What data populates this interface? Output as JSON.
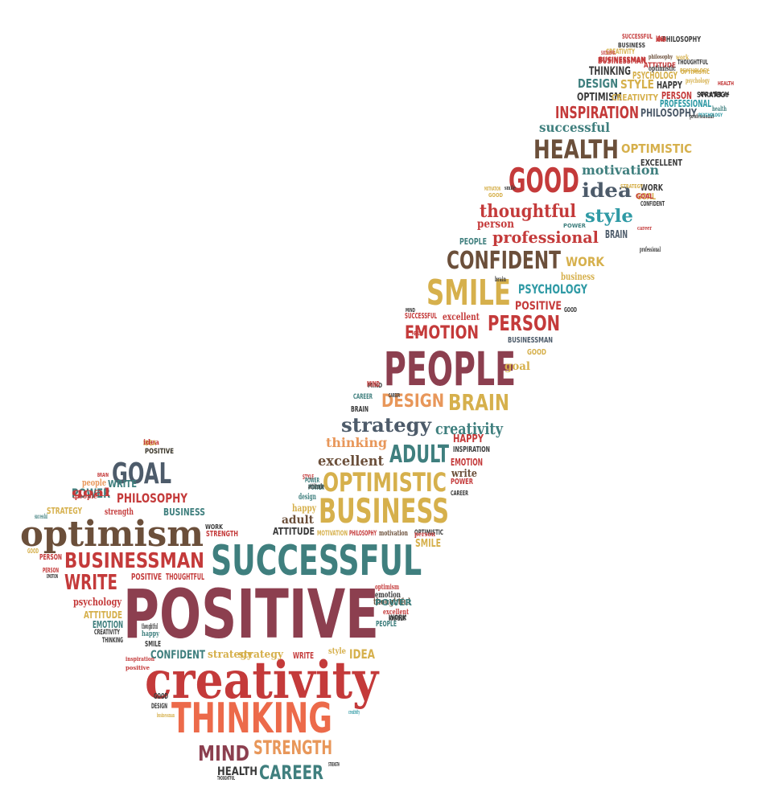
{
  "palette": {
    "red": "#b0343a",
    "maroon": "#8c3f4f",
    "brown": "#6b4f3a",
    "olive": "#8a7a52",
    "gold": "#d6b04c",
    "orange": "#e8975a",
    "coral": "#ec6a4a",
    "teal": "#3f7f7e",
    "cyan": "#2f9aa5",
    "slate": "#4d5b6a",
    "dark": "#3a3a3a",
    "crimson": "#c43a3a"
  },
  "words": [
    {
      "text": "POSITIVE",
      "color": "maroon",
      "cls": "cond"
    },
    {
      "text": "creativity",
      "color": "crimson",
      "cls": "serif"
    },
    {
      "text": "THINKING",
      "color": "coral",
      "cls": "cond"
    },
    {
      "text": "SUCCESSFUL",
      "color": "teal",
      "cls": "cond"
    },
    {
      "text": "PEOPLE",
      "color": "maroon",
      "cls": "cond"
    },
    {
      "text": "BUSINESS",
      "color": "gold",
      "cls": "cond"
    },
    {
      "text": "optimism",
      "color": "brown",
      "cls": "serif"
    },
    {
      "text": "BUSINESSMAN",
      "color": "crimson",
      "cls": "cond"
    },
    {
      "text": "GOOD",
      "color": "crimson",
      "cls": "cond"
    },
    {
      "text": "HEALTH",
      "color": "brown",
      "cls": "cond"
    },
    {
      "text": "SMILE",
      "color": "gold",
      "cls": "cond"
    },
    {
      "text": "CONFIDENT",
      "color": "brown",
      "cls": "cond"
    },
    {
      "text": "OPTIMISTIC",
      "color": "gold",
      "cls": "cond"
    },
    {
      "text": "GOAL",
      "color": "slate",
      "cls": "cond"
    },
    {
      "text": "WRITE",
      "color": "crimson",
      "cls": "cond"
    },
    {
      "text": "MIND",
      "color": "maroon",
      "cls": "cond"
    },
    {
      "text": "STRENGTH",
      "color": "orange",
      "cls": "cond"
    },
    {
      "text": "CAREER",
      "color": "teal",
      "cls": "cond"
    },
    {
      "text": "HEALTH",
      "color": "dark",
      "cls": "cond"
    },
    {
      "text": "ADULT",
      "color": "teal",
      "cls": "cond"
    },
    {
      "text": "excellent",
      "color": "brown",
      "cls": "serif"
    },
    {
      "text": "strategy",
      "color": "slate",
      "cls": "serif"
    },
    {
      "text": "creativity",
      "color": "teal",
      "cls": "serif"
    },
    {
      "text": "DESIGN",
      "color": "orange",
      "cls": "cond"
    },
    {
      "text": "BRAIN",
      "color": "gold",
      "cls": "cond"
    },
    {
      "text": "EMOTION",
      "color": "crimson",
      "cls": "cond"
    },
    {
      "text": "PERSON",
      "color": "crimson",
      "cls": "cond"
    },
    {
      "text": "PSYCHOLOGY",
      "color": "cyan",
      "cls": "cond"
    },
    {
      "text": "POSITIVE",
      "color": "crimson",
      "cls": "cond"
    },
    {
      "text": "professional",
      "color": "crimson",
      "cls": "serif"
    },
    {
      "text": "thoughtful",
      "color": "crimson",
      "cls": "serif"
    },
    {
      "text": "style",
      "color": "cyan",
      "cls": "serif"
    },
    {
      "text": "idea",
      "color": "slate",
      "cls": "serif"
    },
    {
      "text": "motivation",
      "color": "teal",
      "cls": "serif"
    },
    {
      "text": "WORK",
      "color": "gold",
      "cls": "cond"
    },
    {
      "text": "person",
      "color": "crimson",
      "cls": "serif"
    },
    {
      "text": "PEOPLE",
      "color": "teal",
      "cls": "cond"
    },
    {
      "text": "successful",
      "color": "teal",
      "cls": "serif"
    },
    {
      "text": "INSPIRATION",
      "color": "crimson",
      "cls": "cond"
    },
    {
      "text": "OPTIMISM",
      "color": "dark",
      "cls": "cond"
    },
    {
      "text": "DESIGN",
      "color": "teal",
      "cls": "cond"
    },
    {
      "text": "STYLE",
      "color": "gold",
      "cls": "cond"
    },
    {
      "text": "HAPPY",
      "color": "dark",
      "cls": "cond"
    },
    {
      "text": "PHILOSOPHY",
      "color": "slate",
      "cls": "cond"
    },
    {
      "text": "PROFESSIONAL",
      "color": "cyan",
      "cls": "cond"
    },
    {
      "text": "THINKING",
      "color": "dark",
      "cls": "cond"
    },
    {
      "text": "BUSINESSMAN",
      "color": "crimson",
      "cls": "cond"
    },
    {
      "text": "CREATIVITY",
      "color": "gold",
      "cls": "cond"
    },
    {
      "text": "PSYCHOLOGY",
      "color": "gold",
      "cls": "cond"
    },
    {
      "text": "PERSON",
      "color": "crimson",
      "cls": "cond"
    },
    {
      "text": "OPTIMISTIC",
      "color": "gold",
      "cls": "cond"
    },
    {
      "text": "POWER",
      "color": "teal",
      "cls": "cond"
    },
    {
      "text": "PHILOSOPHY",
      "color": "crimson",
      "cls": "cond"
    },
    {
      "text": "BUSINESS",
      "color": "teal",
      "cls": "cond"
    },
    {
      "text": "psychology",
      "color": "crimson",
      "cls": "serif"
    },
    {
      "text": "ATTITUDE",
      "color": "gold",
      "cls": "cond"
    },
    {
      "text": "EMOTION",
      "color": "teal",
      "cls": "cond"
    },
    {
      "text": "CONFIDENT",
      "color": "teal",
      "cls": "cond"
    },
    {
      "text": "strategy",
      "color": "gold",
      "cls": "serif"
    },
    {
      "text": "IDEA",
      "color": "gold",
      "cls": "cond"
    },
    {
      "text": "thinking",
      "color": "orange",
      "cls": "serif"
    },
    {
      "text": "HAPPY",
      "color": "crimson",
      "cls": "cond"
    },
    {
      "text": "INSPIRATION",
      "color": "dark",
      "cls": "cond"
    },
    {
      "text": "EMOTION",
      "color": "crimson",
      "cls": "cond"
    },
    {
      "text": "write",
      "color": "brown",
      "cls": "serif"
    },
    {
      "text": "POWER",
      "color": "crimson",
      "cls": "cond"
    },
    {
      "text": "adult",
      "color": "brown",
      "cls": "serif"
    },
    {
      "text": "ATTITUDE",
      "color": "dark",
      "cls": "cond"
    },
    {
      "text": "MOTIVATION",
      "color": "gold",
      "cls": "cond"
    },
    {
      "text": "motivation",
      "color": "brown",
      "cls": "serif"
    },
    {
      "text": "SMILE",
      "color": "gold",
      "cls": "cond"
    },
    {
      "text": "thoughtful",
      "color": "brown",
      "cls": "serif"
    },
    {
      "text": "PEOPLE",
      "color": "teal",
      "cls": "cond"
    },
    {
      "text": "goal",
      "color": "gold",
      "cls": "serif"
    },
    {
      "text": "GOOD",
      "color": "gold",
      "cls": "cond"
    },
    {
      "text": "BUSINESSMAN",
      "color": "slate",
      "cls": "cond"
    },
    {
      "text": "excellent",
      "color": "crimson",
      "cls": "serif"
    },
    {
      "text": "SUCCESSFUL",
      "color": "crimson",
      "cls": "cond"
    },
    {
      "text": "business",
      "color": "gold",
      "cls": "serif"
    },
    {
      "text": "BRAIN",
      "color": "slate",
      "cls": "cond"
    },
    {
      "text": "GOAL",
      "color": "gold",
      "cls": "cond"
    },
    {
      "text": "EXCELLENT",
      "color": "dark",
      "cls": "cond"
    },
    {
      "text": "STRATEGY",
      "color": "dark",
      "cls": "cond"
    },
    {
      "text": "HEALTH",
      "color": "crimson",
      "cls": "cond"
    },
    {
      "text": "PHILOSOPHY",
      "color": "dark",
      "cls": "cond"
    },
    {
      "text": "idea",
      "color": "crimson",
      "cls": "serif"
    },
    {
      "text": "POSITIVE",
      "color": "gold",
      "cls": "cond"
    },
    {
      "text": "people",
      "color": "orange",
      "cls": "serif"
    },
    {
      "text": "strength",
      "color": "crimson",
      "cls": "serif"
    },
    {
      "text": "STRATEGY",
      "color": "gold",
      "cls": "cond"
    },
    {
      "text": "STRENGTH",
      "color": "crimson",
      "cls": "cond"
    },
    {
      "text": "PERSON",
      "color": "crimson",
      "cls": "cond"
    },
    {
      "text": "POSITIVE",
      "color": "crimson",
      "cls": "cond"
    },
    {
      "text": "THOUGHTFUL",
      "color": "crimson",
      "cls": "cond"
    },
    {
      "text": "CREATIVITY",
      "color": "dark",
      "cls": "cond"
    },
    {
      "text": "THINKING",
      "color": "dark",
      "cls": "cond"
    },
    {
      "text": "happy",
      "color": "teal",
      "cls": "serif"
    },
    {
      "text": "SMILE",
      "color": "dark",
      "cls": "cond"
    },
    {
      "text": "GOOD",
      "color": "dark",
      "cls": "cond"
    },
    {
      "text": "DESIGN",
      "color": "dark",
      "cls": "cond"
    },
    {
      "text": "WRITE",
      "color": "crimson",
      "cls": "cond"
    },
    {
      "text": "IDEA",
      "color": "gold",
      "cls": "cond"
    },
    {
      "text": "strategy",
      "color": "gold",
      "cls": "serif"
    },
    {
      "text": "CAREER",
      "color": "teal",
      "cls": "cond"
    },
    {
      "text": "BRAIN",
      "color": "dark",
      "cls": "cond"
    },
    {
      "text": "MIND",
      "color": "dark",
      "cls": "cond"
    },
    {
      "text": "CAREER",
      "color": "dark",
      "cls": "cond"
    },
    {
      "text": "POWER",
      "color": "teal",
      "cls": "cond"
    },
    {
      "text": "THOUGHTFUL",
      "color": "dark",
      "cls": "cond"
    },
    {
      "text": "SUCCESSFUL",
      "color": "crimson",
      "cls": "cond"
    },
    {
      "text": "CREATIVITY",
      "color": "gold",
      "cls": "cond"
    },
    {
      "text": "philosophy",
      "color": "brown",
      "cls": "serif"
    },
    {
      "text": "work",
      "color": "gold",
      "cls": "serif"
    },
    {
      "text": "BUSINESSMAN",
      "color": "crimson",
      "cls": "cond"
    },
    {
      "text": "ATTITUDE",
      "color": "crimson",
      "cls": "cond"
    },
    {
      "text": "PSYCHOLOGY",
      "color": "gold",
      "cls": "cond"
    },
    {
      "text": "health",
      "color": "teal",
      "cls": "serif"
    },
    {
      "text": "professional",
      "color": "dark",
      "cls": "serif"
    },
    {
      "text": "WORK",
      "color": "dark",
      "cls": "cond"
    },
    {
      "text": "GOAL",
      "color": "crimson",
      "cls": "cond"
    },
    {
      "text": "CONFIDENT",
      "color": "dark",
      "cls": "cond"
    },
    {
      "text": "career",
      "color": "crimson",
      "cls": "serif"
    },
    {
      "text": "smile",
      "color": "dark",
      "cls": "serif"
    },
    {
      "text": "GOOD",
      "color": "gold",
      "cls": "cond"
    },
    {
      "text": "brain",
      "color": "dark",
      "cls": "serif"
    },
    {
      "text": "GOOD",
      "color": "dark",
      "cls": "cond"
    },
    {
      "text": "MIND",
      "color": "dark",
      "cls": "cond"
    },
    {
      "text": "CAREER",
      "color": "dark",
      "cls": "cond"
    },
    {
      "text": "STYLE",
      "color": "crimson",
      "cls": "cond"
    },
    {
      "text": "POWER",
      "color": "teal",
      "cls": "cond"
    },
    {
      "text": "IDEA",
      "color": "crimson",
      "cls": "cond"
    },
    {
      "text": "MIND",
      "color": "crimson",
      "cls": "cond"
    },
    {
      "text": "HEALTH",
      "color": "crimson",
      "cls": "cond"
    },
    {
      "text": "optimism",
      "color": "crimson",
      "cls": "serif"
    },
    {
      "text": "emotion",
      "color": "dark",
      "cls": "serif"
    },
    {
      "text": "excellent",
      "color": "crimson",
      "cls": "serif"
    },
    {
      "text": "WORK",
      "color": "dark",
      "cls": "cond"
    },
    {
      "text": "OPTIMISTIC",
      "color": "dark",
      "cls": "cond"
    },
    {
      "text": "PHILOSOPHY",
      "color": "crimson",
      "cls": "cond"
    },
    {
      "text": "idea",
      "color": "crimson",
      "cls": "serif"
    },
    {
      "text": "POSITIVE",
      "color": "dark",
      "cls": "cond"
    },
    {
      "text": "GOOD",
      "color": "gold",
      "cls": "cond"
    },
    {
      "text": "PERSON",
      "color": "crimson",
      "cls": "cond"
    },
    {
      "text": "EMOTION",
      "color": "dark",
      "cls": "cond"
    },
    {
      "text": "BRAIN",
      "color": "crimson",
      "cls": "cond"
    },
    {
      "text": "WRITE",
      "color": "teal",
      "cls": "cond"
    },
    {
      "text": "people",
      "color": "crimson",
      "cls": "serif"
    },
    {
      "text": "successful",
      "color": "teal",
      "cls": "serif"
    },
    {
      "text": "goal",
      "color": "crimson",
      "cls": "serif"
    },
    {
      "text": "POWER",
      "color": "teal",
      "cls": "cond"
    },
    {
      "text": "thoughtful",
      "color": "dark",
      "cls": "serif"
    },
    {
      "text": "positive",
      "color": "crimson",
      "cls": "serif"
    },
    {
      "text": "inspiration",
      "color": "crimson",
      "cls": "serif"
    },
    {
      "text": "businessman",
      "color": "gold",
      "cls": "serif"
    },
    {
      "text": "creativity",
      "color": "cyan",
      "cls": "serif"
    },
    {
      "text": "STRENGTH",
      "color": "dark",
      "cls": "cond"
    },
    {
      "text": "happy",
      "color": "gold",
      "cls": "serif"
    },
    {
      "text": "design",
      "color": "teal",
      "cls": "serif"
    },
    {
      "text": "style",
      "color": "gold",
      "cls": "serif"
    },
    {
      "text": "person",
      "color": "crimson",
      "cls": "serif"
    },
    {
      "text": "CONFIDENT",
      "color": "dark",
      "cls": "cond"
    },
    {
      "text": "WORK",
      "color": "dark",
      "cls": "cond"
    },
    {
      "text": "attitude",
      "color": "dark",
      "cls": "serif"
    },
    {
      "text": "POWER",
      "color": "teal",
      "cls": "cond"
    },
    {
      "text": "THOUGHTFUL",
      "color": "dark",
      "cls": "cond"
    },
    {
      "text": "optimistic",
      "color": "dark",
      "cls": "serif"
    },
    {
      "text": "psychology",
      "color": "gold",
      "cls": "serif"
    },
    {
      "text": "OPTIMISTIC",
      "color": "gold",
      "cls": "cond"
    },
    {
      "text": "PSYCHOLOGY",
      "color": "cyan",
      "cls": "cond"
    },
    {
      "text": "professional",
      "color": "dark",
      "cls": "serif"
    },
    {
      "text": "BUSINESS",
      "color": "dark",
      "cls": "cond"
    },
    {
      "text": "SUCCESSFUL",
      "color": "crimson",
      "cls": "cond"
    },
    {
      "text": "write",
      "color": "dark",
      "cls": "serif"
    },
    {
      "text": "STRATEGY",
      "color": "gold",
      "cls": "cond"
    },
    {
      "text": "MOTIVATION",
      "color": "gold",
      "cls": "cond"
    },
    {
      "text": "successful",
      "color": "teal",
      "cls": "serif"
    }
  ]
}
